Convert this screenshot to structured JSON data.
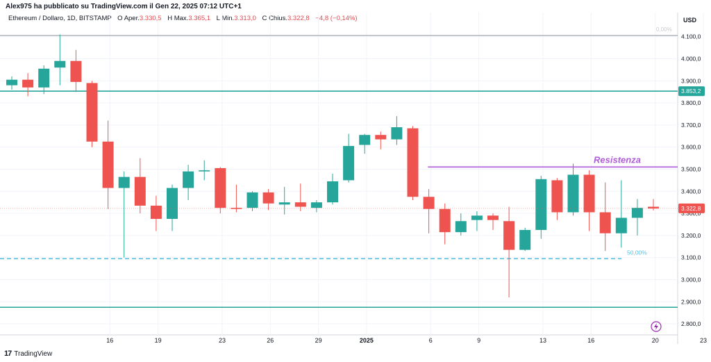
{
  "header": {
    "published_by": "Alex975 ha pubblicato su TradingView.com il Gen 22, 2025 07:12 UTC+1",
    "symbol": "Ethereum / Dollaro, 1D, BITSTAMP",
    "open_label": "O",
    "open_text": "Aper.",
    "open_value": "3.330,5",
    "high_label": "H",
    "high_text": "Max.",
    "high_value": "3.365,1",
    "low_label": "L",
    "low_text": "Min.",
    "low_value": "3.313,0",
    "close_label": "C",
    "close_text": "Chius.",
    "close_value": "3.322,8",
    "change_value": "−4,8 (−0,14%)"
  },
  "footer": {
    "logo_text": "TradingView"
  },
  "colors": {
    "up": "#26a69a",
    "down": "#ef5350",
    "resistance": "#b05bd9",
    "support_line": "#26a69a",
    "fib_line": "#5bc0de",
    "price_label_bg": "#ef5350",
    "level_label_bg": "#26a69a"
  },
  "chart_data": {
    "type": "candlestick",
    "currency_label": "USD",
    "ylim": [
      2750,
      4140
    ],
    "y_ticks": [
      {
        "value": 2800,
        "label": "2.800,0"
      },
      {
        "value": 2900,
        "label": "2.900,0"
      },
      {
        "value": 3000,
        "label": "3.000,0"
      },
      {
        "value": 3100,
        "label": "3.100,0"
      },
      {
        "value": 3200,
        "label": "3.200,0"
      },
      {
        "value": 3300,
        "label": "3.300,0"
      },
      {
        "value": 3400,
        "label": "3.400,0"
      },
      {
        "value": 3500,
        "label": "3.500,0"
      },
      {
        "value": 3600,
        "label": "3.600,0"
      },
      {
        "value": 3700,
        "label": "3.700,0"
      },
      {
        "value": 3800,
        "label": "3.800,0"
      },
      {
        "value": 3900,
        "label": "3.900,0"
      },
      {
        "value": 4000,
        "label": "4.000,0"
      },
      {
        "value": 4100,
        "label": "4.100,0"
      }
    ],
    "x_ticks": [
      {
        "index": 3,
        "label": "16"
      },
      {
        "index": 6,
        "label": "19"
      },
      {
        "index": 10,
        "label": "23"
      },
      {
        "index": 13,
        "label": "26"
      },
      {
        "index": 16,
        "label": "29"
      },
      {
        "index": 19,
        "label": "2025"
      },
      {
        "index": 23,
        "label": "6"
      },
      {
        "index": 26,
        "label": "9"
      },
      {
        "index": 30,
        "label": "13"
      },
      {
        "index": 33,
        "label": "16"
      },
      {
        "index": 37,
        "label": "20"
      },
      {
        "index": 40,
        "label": "23"
      }
    ],
    "candles": [
      {
        "o": 3880,
        "h": 3920,
        "l": 3860,
        "c": 3905
      },
      {
        "o": 3905,
        "h": 3935,
        "l": 3830,
        "c": 3870
      },
      {
        "o": 3870,
        "h": 3970,
        "l": 3840,
        "c": 3955
      },
      {
        "o": 3960,
        "h": 4110,
        "l": 3880,
        "c": 3990
      },
      {
        "o": 3990,
        "h": 4040,
        "l": 3850,
        "c": 3895
      },
      {
        "o": 3890,
        "h": 3900,
        "l": 3600,
        "c": 3625
      },
      {
        "o": 3625,
        "h": 3720,
        "l": 3320,
        "c": 3415
      },
      {
        "o": 3415,
        "h": 3490,
        "l": 3100,
        "c": 3465
      },
      {
        "o": 3465,
        "h": 3550,
        "l": 3300,
        "c": 3335
      },
      {
        "o": 3335,
        "h": 3380,
        "l": 3220,
        "c": 3275
      },
      {
        "o": 3275,
        "h": 3430,
        "l": 3220,
        "c": 3415
      },
      {
        "o": 3415,
        "h": 3520,
        "l": 3360,
        "c": 3490
      },
      {
        "o": 3490,
        "h": 3540,
        "l": 3450,
        "c": 3495
      },
      {
        "o": 3505,
        "h": 3510,
        "l": 3300,
        "c": 3325
      },
      {
        "o": 3325,
        "h": 3430,
        "l": 3305,
        "c": 3320
      },
      {
        "o": 3325,
        "h": 3400,
        "l": 3310,
        "c": 3395
      },
      {
        "o": 3395,
        "h": 3410,
        "l": 3315,
        "c": 3345
      },
      {
        "o": 3340,
        "h": 3420,
        "l": 3295,
        "c": 3350
      },
      {
        "o": 3350,
        "h": 3435,
        "l": 3310,
        "c": 3330
      },
      {
        "o": 3325,
        "h": 3360,
        "l": 3305,
        "c": 3350
      },
      {
        "o": 3350,
        "h": 3480,
        "l": 3340,
        "c": 3445
      },
      {
        "o": 3450,
        "h": 3660,
        "l": 3440,
        "c": 3605
      },
      {
        "o": 3610,
        "h": 3660,
        "l": 3570,
        "c": 3655
      },
      {
        "o": 3655,
        "h": 3670,
        "l": 3590,
        "c": 3635
      },
      {
        "o": 3635,
        "h": 3740,
        "l": 3610,
        "c": 3690
      },
      {
        "o": 3685,
        "h": 3695,
        "l": 3360,
        "c": 3375
      },
      {
        "o": 3375,
        "h": 3410,
        "l": 3210,
        "c": 3320
      },
      {
        "o": 3320,
        "h": 3345,
        "l": 3160,
        "c": 3215
      },
      {
        "o": 3215,
        "h": 3300,
        "l": 3200,
        "c": 3265
      },
      {
        "o": 3270,
        "h": 3310,
        "l": 3220,
        "c": 3290
      },
      {
        "o": 3290,
        "h": 3300,
        "l": 3225,
        "c": 3270
      },
      {
        "o": 3265,
        "h": 3330,
        "l": 2920,
        "c": 3135
      },
      {
        "o": 3135,
        "h": 3235,
        "l": 3130,
        "c": 3225
      },
      {
        "o": 3225,
        "h": 3470,
        "l": 3185,
        "c": 3455
      },
      {
        "o": 3450,
        "h": 3460,
        "l": 3270,
        "c": 3305
      },
      {
        "o": 3305,
        "h": 3525,
        "l": 3290,
        "c": 3475
      },
      {
        "o": 3475,
        "h": 3495,
        "l": 3220,
        "c": 3305
      },
      {
        "o": 3305,
        "h": 3440,
        "l": 3130,
        "c": 3210
      },
      {
        "o": 3210,
        "h": 3450,
        "l": 3145,
        "c": 3280
      },
      {
        "o": 3280,
        "h": 3365,
        "l": 3200,
        "c": 3325
      },
      {
        "o": 3330,
        "h": 3365,
        "l": 3313,
        "c": 3322
      }
    ],
    "lines": [
      {
        "name": "top-line",
        "value": 4105,
        "style": "solid",
        "color": "#b2b5be"
      },
      {
        "name": "support-3853",
        "value": 3853.2,
        "style": "solid",
        "color": "#26a69a",
        "label": "3.853,2"
      },
      {
        "name": "resistance",
        "value": 3510,
        "style": "solid",
        "color": "#b05bd9",
        "start_index": 23
      },
      {
        "name": "fib-50",
        "value": 3095,
        "style": "dashed",
        "color": "#5bc0de"
      },
      {
        "name": "bottom-line",
        "value": 2875,
        "style": "solid",
        "color": "#26a69a"
      }
    ],
    "annotations": {
      "resistance_text": "Resistenza",
      "fib_label_top": "0,00%",
      "fib_label": "50,00%"
    },
    "current_price": {
      "value": 3322.8,
      "label": "3.322,8"
    }
  }
}
